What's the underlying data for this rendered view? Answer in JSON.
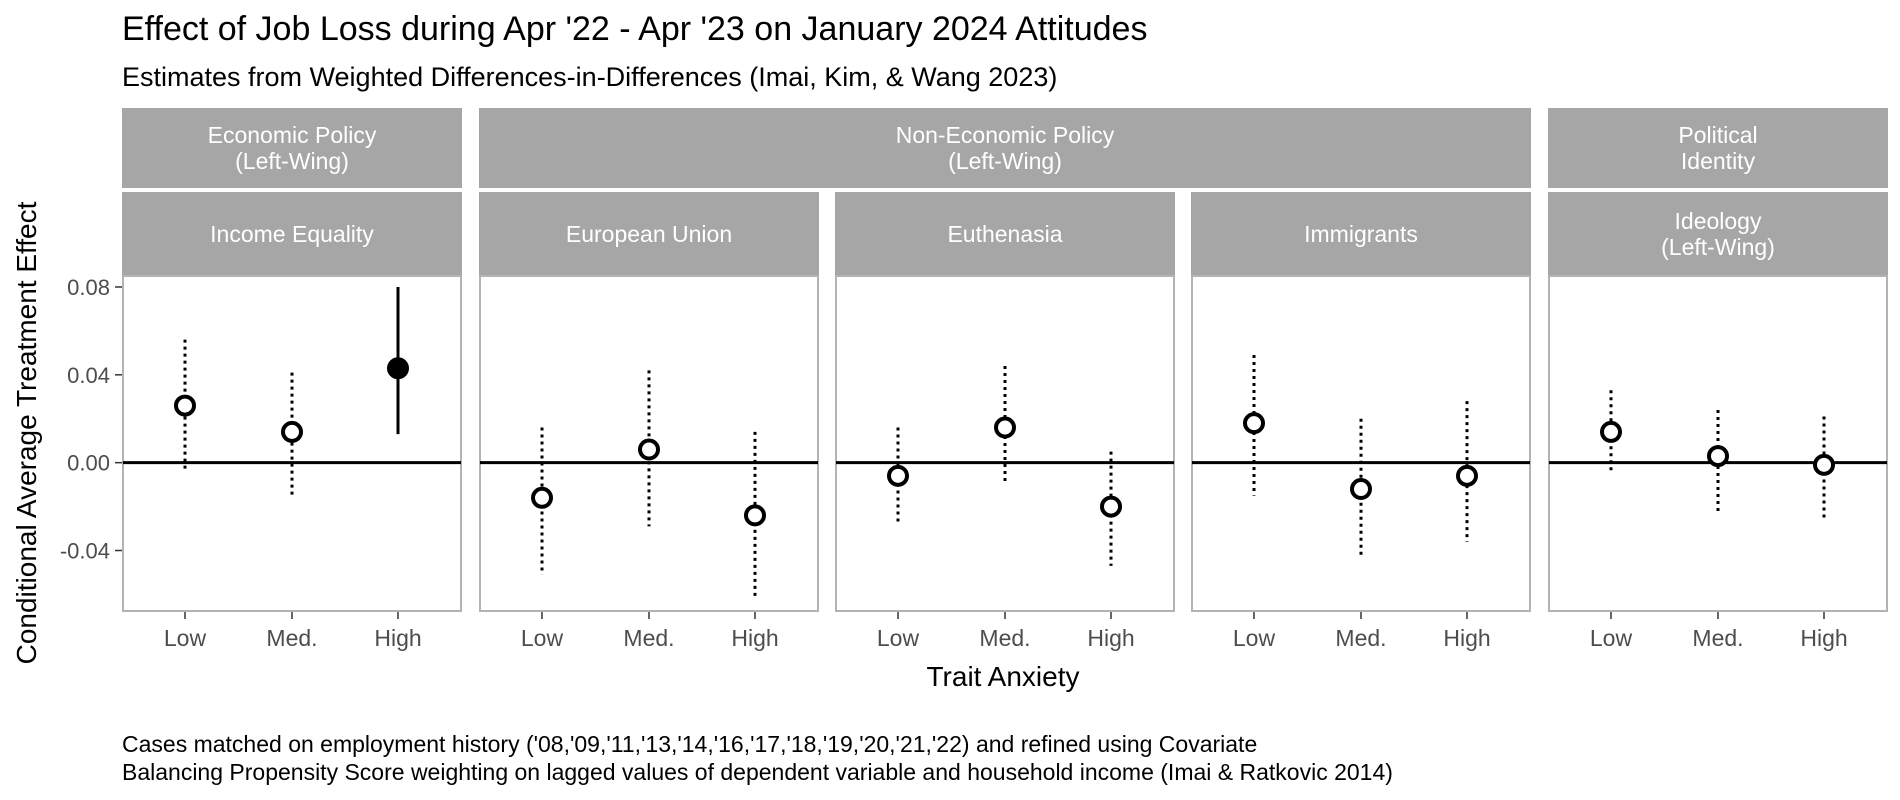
{
  "chart_data": {
    "type": "scatter",
    "title": "Effect of Job Loss during Apr '22 - Apr '23 on January 2024 Attitudes",
    "subtitle": "Estimates from Weighted Differences-in-Differences (Imai, Kim, & Wang 2023)",
    "xlabel": "Trait Anxiety",
    "ylabel": "Conditional Average Treatment Effect",
    "caption_lines": [
      "Cases matched on employment history ('08,'09,'11,'13,'14,'16,'17,'18,'19,'20,'21,'22) and refined using Covariate",
      "Balancing Propensity Score weighting on lagged values of dependent variable and household income (Imai & Ratkovic 2014)"
    ],
    "categories": [
      "Low",
      "Med.",
      "High"
    ],
    "ylim": [
      -0.068,
      0.085
    ],
    "yticks": [
      0.08,
      0.04,
      0.0,
      -0.04
    ],
    "ytick_labels": [
      "0.08",
      "0.04",
      "0.00",
      "-0.04"
    ],
    "reference_line": 0,
    "colors": {
      "strip": "#a6a6a6",
      "strip_text": "#ffffff",
      "border": "#b3b3b3",
      "axis_text": "#4d4d4d",
      "mark": "#000000"
    },
    "groups": [
      {
        "label_lines": [
          "Economic Policy",
          "(Left-Wing)"
        ],
        "panels": [
          0
        ]
      },
      {
        "label_lines": [
          "Non-Economic Policy",
          "(Left-Wing)"
        ],
        "panels": [
          1,
          2,
          3
        ]
      },
      {
        "label_lines": [
          "Political",
          "Identity"
        ],
        "panels": [
          4
        ]
      }
    ],
    "panels": [
      {
        "label_lines": [
          "Income Equality"
        ],
        "points": [
          {
            "x": "Low",
            "estimate": 0.026,
            "lower": -0.004,
            "upper": 0.056,
            "significant": false
          },
          {
            "x": "Med.",
            "estimate": 0.014,
            "lower": -0.016,
            "upper": 0.041,
            "significant": false
          },
          {
            "x": "High",
            "estimate": 0.043,
            "lower": 0.013,
            "upper": 0.08,
            "significant": true
          }
        ]
      },
      {
        "label_lines": [
          "European Union"
        ],
        "points": [
          {
            "x": "Low",
            "estimate": -0.016,
            "lower": -0.051,
            "upper": 0.016,
            "significant": false
          },
          {
            "x": "Med.",
            "estimate": 0.006,
            "lower": -0.029,
            "upper": 0.042,
            "significant": false
          },
          {
            "x": "High",
            "estimate": -0.024,
            "lower": -0.062,
            "upper": 0.014,
            "significant": false
          }
        ]
      },
      {
        "label_lines": [
          "Euthenasia"
        ],
        "points": [
          {
            "x": "Low",
            "estimate": -0.006,
            "lower": -0.027,
            "upper": 0.016,
            "significant": false
          },
          {
            "x": "Med.",
            "estimate": 0.016,
            "lower": -0.009,
            "upper": 0.044,
            "significant": false
          },
          {
            "x": "High",
            "estimate": -0.02,
            "lower": -0.047,
            "upper": 0.005,
            "significant": false
          }
        ]
      },
      {
        "label_lines": [
          "Immigrants"
        ],
        "points": [
          {
            "x": "Low",
            "estimate": 0.018,
            "lower": -0.015,
            "upper": 0.049,
            "significant": false
          },
          {
            "x": "Med.",
            "estimate": -0.012,
            "lower": -0.043,
            "upper": 0.02,
            "significant": false
          },
          {
            "x": "High",
            "estimate": -0.006,
            "lower": -0.036,
            "upper": 0.028,
            "significant": false
          }
        ]
      },
      {
        "label_lines": [
          "Ideology",
          "(Left-Wing)"
        ],
        "points": [
          {
            "x": "Low",
            "estimate": 0.014,
            "lower": -0.005,
            "upper": 0.033,
            "significant": false
          },
          {
            "x": "Med.",
            "estimate": 0.003,
            "lower": -0.022,
            "upper": 0.024,
            "significant": false
          },
          {
            "x": "High",
            "estimate": -0.001,
            "lower": -0.025,
            "upper": 0.021,
            "significant": false
          }
        ]
      }
    ]
  }
}
